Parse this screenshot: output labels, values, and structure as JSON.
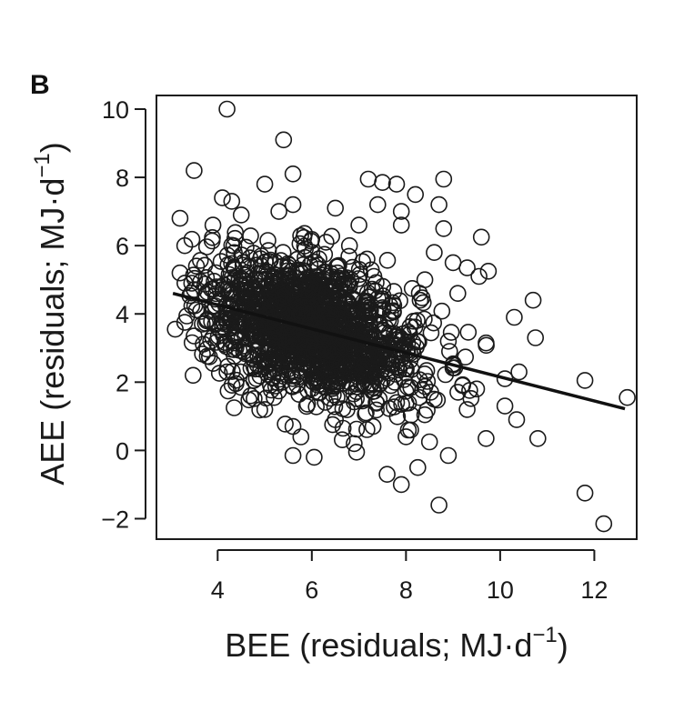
{
  "panel_label": "B",
  "chart_data": {
    "type": "scatter",
    "xlabel": {
      "main": "BEE (residuals; MJ·d",
      "sup": "−1",
      "close": ")"
    },
    "ylabel": {
      "main": "AEE (residuals; MJ·d",
      "sup": "−1",
      "close": ")"
    },
    "xlim": [
      2.7,
      12.9
    ],
    "ylim": [
      -2.6,
      10.4
    ],
    "x_ticks": [
      {
        "value": 4,
        "label": "4"
      },
      {
        "value": 6,
        "label": "6"
      },
      {
        "value": 8,
        "label": "8"
      },
      {
        "value": 10,
        "label": "10"
      },
      {
        "value": 12,
        "label": "12"
      }
    ],
    "y_ticks": [
      {
        "value": -2,
        "label": "−2"
      },
      {
        "value": 0,
        "label": "0"
      },
      {
        "value": 2,
        "label": "2"
      },
      {
        "value": 4,
        "label": "4"
      },
      {
        "value": 6,
        "label": "6"
      },
      {
        "value": 8,
        "label": "8"
      },
      {
        "value": 10,
        "label": "10"
      }
    ],
    "fit_line": {
      "x": [
        3.05,
        12.65
      ],
      "y": [
        4.6,
        1.22
      ]
    },
    "points": [
      [
        4.2,
        10.0
      ],
      [
        5.4,
        9.1
      ],
      [
        3.5,
        8.2
      ],
      [
        5.6,
        8.1
      ],
      [
        4.1,
        7.4
      ],
      [
        4.3,
        7.3
      ],
      [
        5.0,
        7.8
      ],
      [
        7.2,
        7.95
      ],
      [
        7.5,
        7.85
      ],
      [
        7.8,
        7.8
      ],
      [
        8.8,
        7.95
      ],
      [
        8.2,
        7.5
      ],
      [
        3.2,
        6.8
      ],
      [
        3.9,
        6.6
      ],
      [
        4.5,
        6.9
      ],
      [
        5.3,
        7.0
      ],
      [
        5.6,
        7.2
      ],
      [
        6.5,
        7.1
      ],
      [
        7.4,
        7.2
      ],
      [
        7.9,
        7.0
      ],
      [
        8.7,
        7.2
      ],
      [
        8.8,
        6.5
      ],
      [
        9.6,
        6.25
      ],
      [
        3.3,
        6.0
      ],
      [
        3.55,
        5.4
      ],
      [
        3.2,
        5.2
      ],
      [
        3.45,
        4.9
      ],
      [
        3.1,
        3.55
      ],
      [
        3.3,
        3.75
      ],
      [
        3.5,
        3.35
      ],
      [
        4.2,
        2.3
      ],
      [
        4.5,
        1.85
      ],
      [
        4.35,
        1.25
      ],
      [
        5.2,
        1.55
      ],
      [
        5.6,
        0.7
      ],
      [
        5.6,
        -0.15
      ],
      [
        6.05,
        -0.2
      ],
      [
        6.9,
        0.2
      ],
      [
        6.95,
        -0.05
      ],
      [
        7.6,
        -0.7
      ],
      [
        7.9,
        -1.0
      ],
      [
        8.25,
        -0.5
      ],
      [
        8.7,
        -1.6
      ],
      [
        8.1,
        0.6
      ],
      [
        8.5,
        0.25
      ],
      [
        8.9,
        -0.15
      ],
      [
        9.3,
        1.2
      ],
      [
        9.7,
        0.35
      ],
      [
        10.1,
        1.3
      ],
      [
        10.35,
        0.9
      ],
      [
        10.8,
        0.35
      ],
      [
        10.4,
        2.3
      ],
      [
        10.1,
        2.1
      ],
      [
        10.3,
        3.9
      ],
      [
        10.7,
        4.4
      ],
      [
        10.75,
        3.3
      ],
      [
        9.75,
        5.25
      ],
      [
        9.55,
        5.1
      ],
      [
        9.3,
        5.35
      ],
      [
        9.7,
        3.15
      ],
      [
        11.8,
        2.05
      ],
      [
        12.7,
        1.55
      ],
      [
        11.8,
        -1.25
      ],
      [
        12.2,
        -2.15
      ],
      [
        9.5,
        1.8
      ],
      [
        9.2,
        1.9
      ],
      [
        9.0,
        2.5
      ],
      [
        8.9,
        3.2
      ],
      [
        9.1,
        4.6
      ],
      [
        9.0,
        5.5
      ],
      [
        8.6,
        5.8
      ],
      [
        8.4,
        5.0
      ],
      [
        7.0,
        6.6
      ],
      [
        6.3,
        6.1
      ],
      [
        6.8,
        6.0
      ],
      [
        7.9,
        6.6
      ],
      [
        8.3,
        4.4
      ],
      [
        8.6,
        1.5
      ],
      [
        4.7,
        1.6
      ],
      [
        5.0,
        1.2
      ],
      [
        6.5,
        0.9
      ],
      [
        7.3,
        0.7
      ],
      [
        7.8,
        1.4
      ],
      [
        8.0,
        0.4
      ]
    ]
  }
}
